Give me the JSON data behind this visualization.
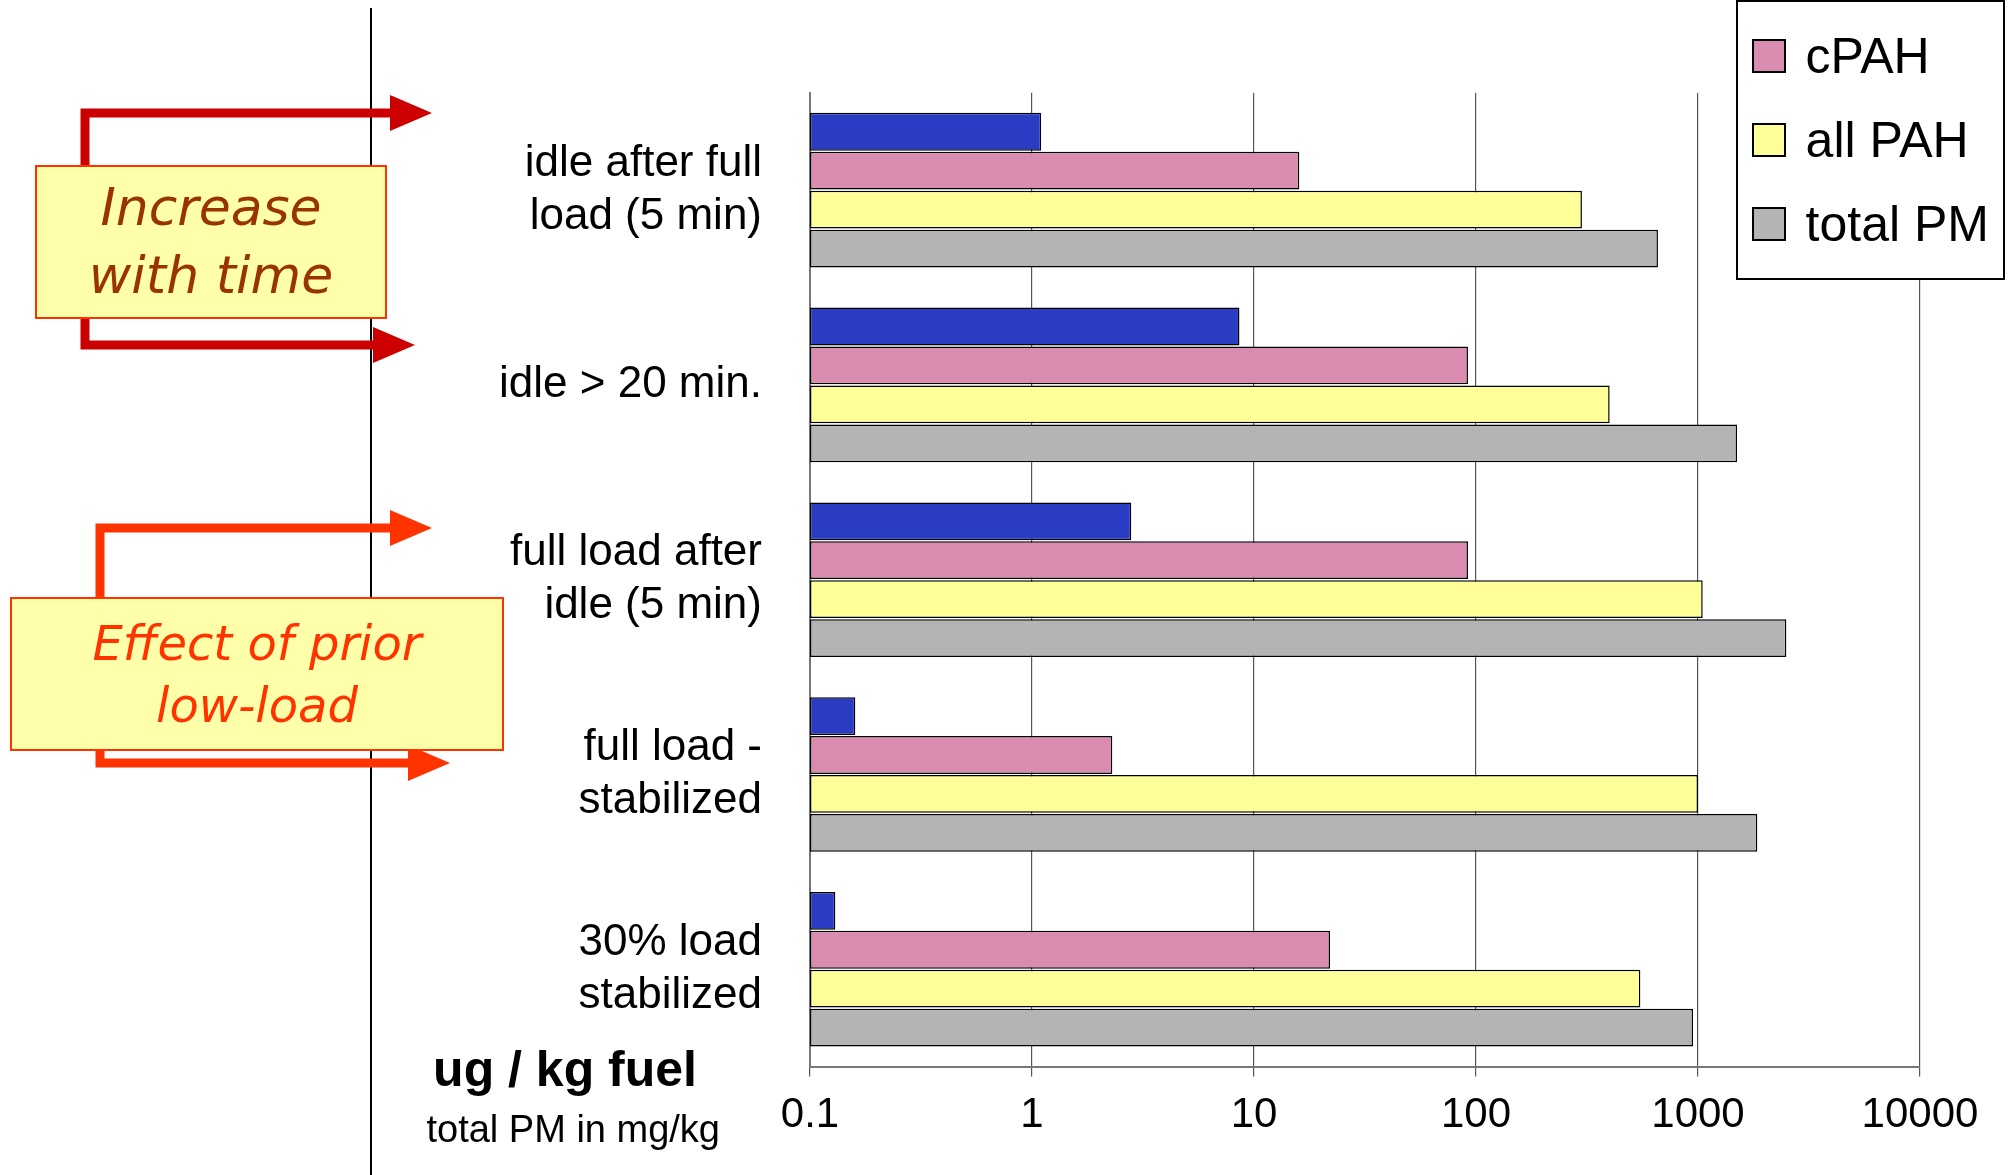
{
  "chart_data": {
    "type": "bar",
    "orientation": "horizontal",
    "log": "x",
    "xlabel": "ug / kg fuel",
    "categories": [
      "idle after full load (5 min)",
      "idle > 20 min.",
      "full load after idle (5 min)",
      "full load - stabilized",
      "30% load stabilized"
    ],
    "series": [
      {
        "color": "#2b3cc4",
        "values": [
          1.1,
          8.6,
          2.8,
          0.16,
          0.13
        ]
      },
      {
        "name": "cPAH",
        "color": "#d98bb0",
        "values": [
          16,
          92,
          92,
          2.3,
          22
        ]
      },
      {
        "name": "all PAH",
        "color": "#ffff99",
        "values": [
          300,
          400,
          1050,
          1000,
          550
        ]
      },
      {
        "name": "total PM",
        "color": "#b4b4b4",
        "values": [
          660,
          1500,
          2500,
          1850,
          950
        ]
      }
    ],
    "xlim": [
      0.1,
      10000
    ],
    "xticks": [
      0.1,
      1,
      10,
      100,
      1000,
      10000
    ],
    "grid": "x",
    "legend": "top right",
    "annotations": [
      "Increase with time",
      "Effect of prior low-load",
      "total PM in mg/kg"
    ]
  }
}
